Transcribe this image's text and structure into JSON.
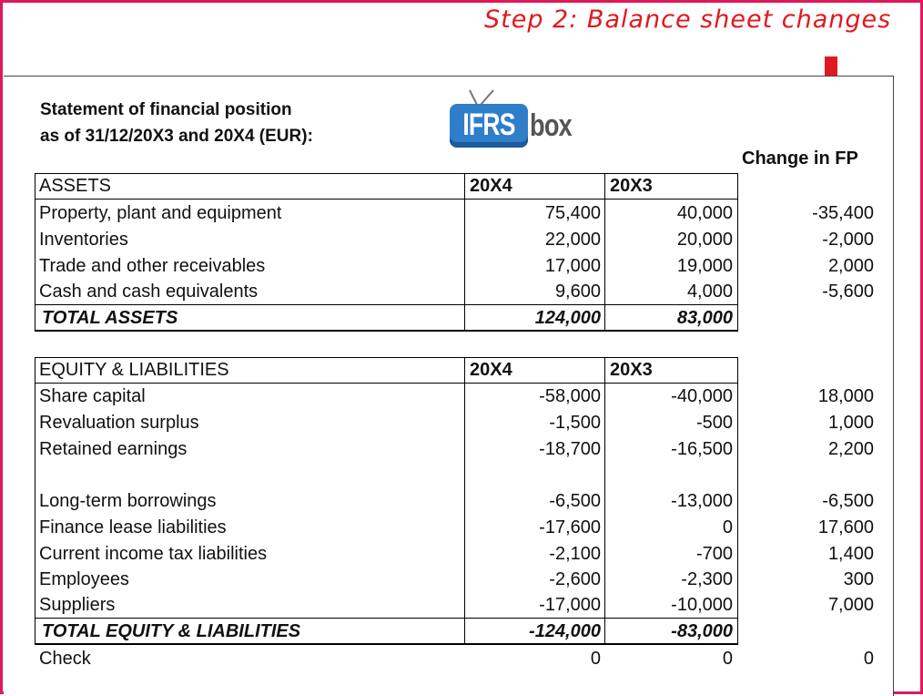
{
  "step_title": "Step 2: Balance sheet changes",
  "statement_title": [
    "Statement of financial position",
    "as of 31/12/20X3 and 20X4 (EUR):"
  ],
  "logo": {
    "left_text": "IFRS",
    "right_text": "box",
    "colors": {
      "blue": "#2f7ec9",
      "gray": "#555555"
    }
  },
  "change_header": "Change in FP",
  "assets": {
    "header": "ASSETS",
    "col1": "20X4",
    "col2": "20X3",
    "rows": [
      {
        "label": "Property, plant and equipment",
        "y20x4": "75,400",
        "y20x3": "40,000",
        "change": "-35,400"
      },
      {
        "label": "Inventories",
        "y20x4": "22,000",
        "y20x3": "20,000",
        "change": "-2,000"
      },
      {
        "label": "Trade and other receivables",
        "y20x4": "17,000",
        "y20x3": "19,000",
        "change": "2,000"
      },
      {
        "label": "Cash and cash equivalents",
        "y20x4": "9,600",
        "y20x3": "4,000",
        "change": "-5,600"
      }
    ],
    "total": {
      "label": "TOTAL ASSETS",
      "y20x4": "124,000",
      "y20x3": "83,000"
    }
  },
  "equity": {
    "header": "EQUITY & LIABILITIES",
    "col1": "20X4",
    "col2": "20X3",
    "rows": [
      {
        "label": "Share capital",
        "y20x4": "-58,000",
        "y20x3": "-40,000",
        "change": "18,000"
      },
      {
        "label": "Revaluation surplus",
        "y20x4": "-1,500",
        "y20x3": "-500",
        "change": "1,000"
      },
      {
        "label": "Retained earnings",
        "y20x4": "-18,700",
        "y20x3": "-16,500",
        "change": "2,200"
      },
      {
        "label": "Long-term borrowings",
        "y20x4": "-6,500",
        "y20x3": "-13,000",
        "change": "-6,500"
      },
      {
        "label": "Finance lease liabilities",
        "y20x4": "-17,600",
        "y20x3": "0",
        "change": "17,600"
      },
      {
        "label": "Current income tax liabilities",
        "y20x4": "-2,100",
        "y20x3": "-700",
        "change": "1,400"
      },
      {
        "label": "Employees",
        "y20x4": "-2,600",
        "y20x3": "-2,300",
        "change": "300"
      },
      {
        "label": "Suppliers",
        "y20x4": "-17,000",
        "y20x3": "-10,000",
        "change": "7,000"
      }
    ],
    "total": {
      "label": "TOTAL EQUITY & LIABILITIES",
      "y20x4": "-124,000",
      "y20x3": "-83,000"
    }
  },
  "check": {
    "label": "Check",
    "y20x4": "0",
    "y20x3": "0",
    "change": "0"
  },
  "colors": {
    "frame": "#e0195a",
    "title_red": "#e0191f",
    "arrow_red": "#e0191f"
  }
}
